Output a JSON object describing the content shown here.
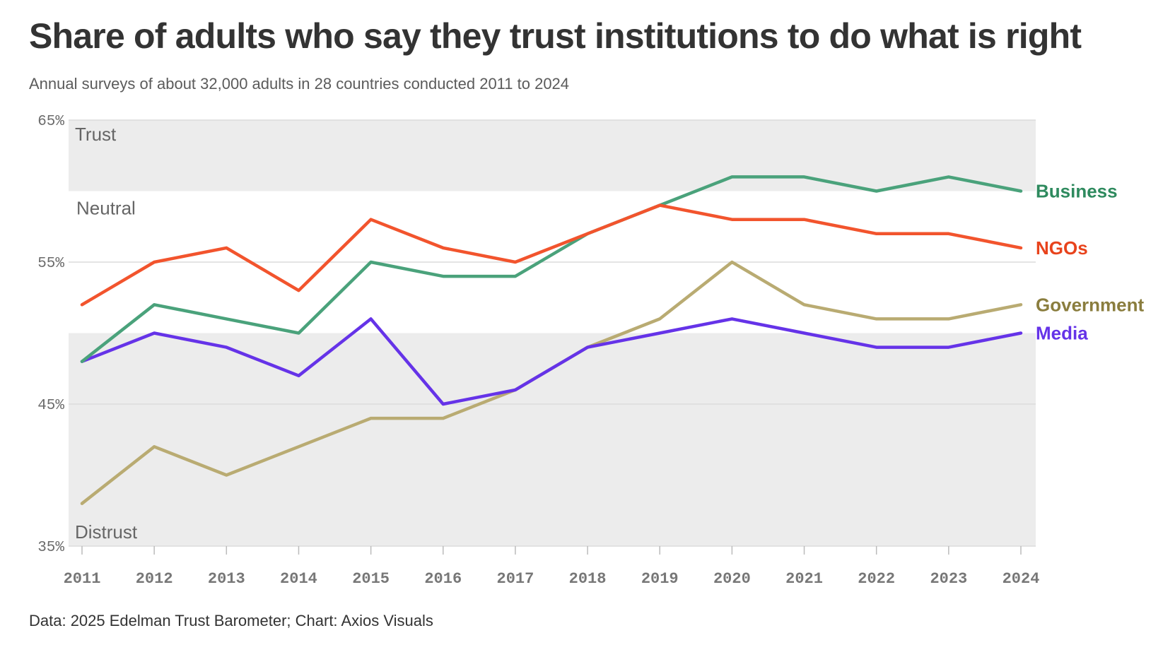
{
  "header": {
    "title": "Share of adults who say they trust institutions to do what is right",
    "subtitle": "Annual surveys of about 32,000 adults in 28 countries conducted 2011 to 2024"
  },
  "footer": {
    "source": "Data: 2025 Edelman Trust Barometer; Chart: Axios Visuals"
  },
  "chart_data": {
    "type": "line",
    "title": "Share of adults who say they trust institutions to do what is right",
    "subtitle": "Annual surveys of about 32,000 adults in 28 countries conducted 2011 to 2024",
    "x": [
      "2011",
      "2012",
      "2013",
      "2014",
      "2015",
      "2016",
      "2017",
      "2018",
      "2019",
      "2020",
      "2021",
      "2022",
      "2023",
      "2024"
    ],
    "ylim": [
      35,
      65
    ],
    "yticks": [
      35,
      45,
      55,
      65
    ],
    "ytick_labels": [
      "35%",
      "45%",
      "55%",
      "65%"
    ],
    "ylabel": "",
    "xlabel": "",
    "grid": true,
    "zones": [
      {
        "label": "Trust",
        "from": 60,
        "to": 65,
        "color": "#ececec"
      },
      {
        "label": "Neutral",
        "from": 50,
        "to": 60,
        "color": "#ffffff"
      },
      {
        "label": "Distrust",
        "from": 35,
        "to": 50,
        "color": "#ececec"
      }
    ],
    "series": [
      {
        "name": "Government",
        "color": "#b9ab72",
        "label_color": "#8a7d3e",
        "values": [
          38,
          42,
          40,
          42,
          44,
          44,
          46,
          49,
          51,
          55,
          52,
          51,
          51,
          52
        ]
      },
      {
        "name": "Media",
        "color": "#6533e8",
        "label_color": "#6533e8",
        "values": [
          48,
          50,
          49,
          47,
          51,
          45,
          46,
          49,
          50,
          51,
          50,
          49,
          49,
          50
        ]
      },
      {
        "name": "Business",
        "color": "#4aa27b",
        "label_color": "#2e8a5e",
        "values": [
          48,
          52,
          51,
          50,
          55,
          54,
          54,
          57,
          59,
          61,
          61,
          60,
          61,
          60
        ]
      },
      {
        "name": "NGOs",
        "color": "#f2542d",
        "label_color": "#e8431c",
        "values": [
          52,
          55,
          56,
          53,
          58,
          56,
          55,
          57,
          59,
          58,
          58,
          57,
          57,
          56
        ]
      }
    ]
  }
}
